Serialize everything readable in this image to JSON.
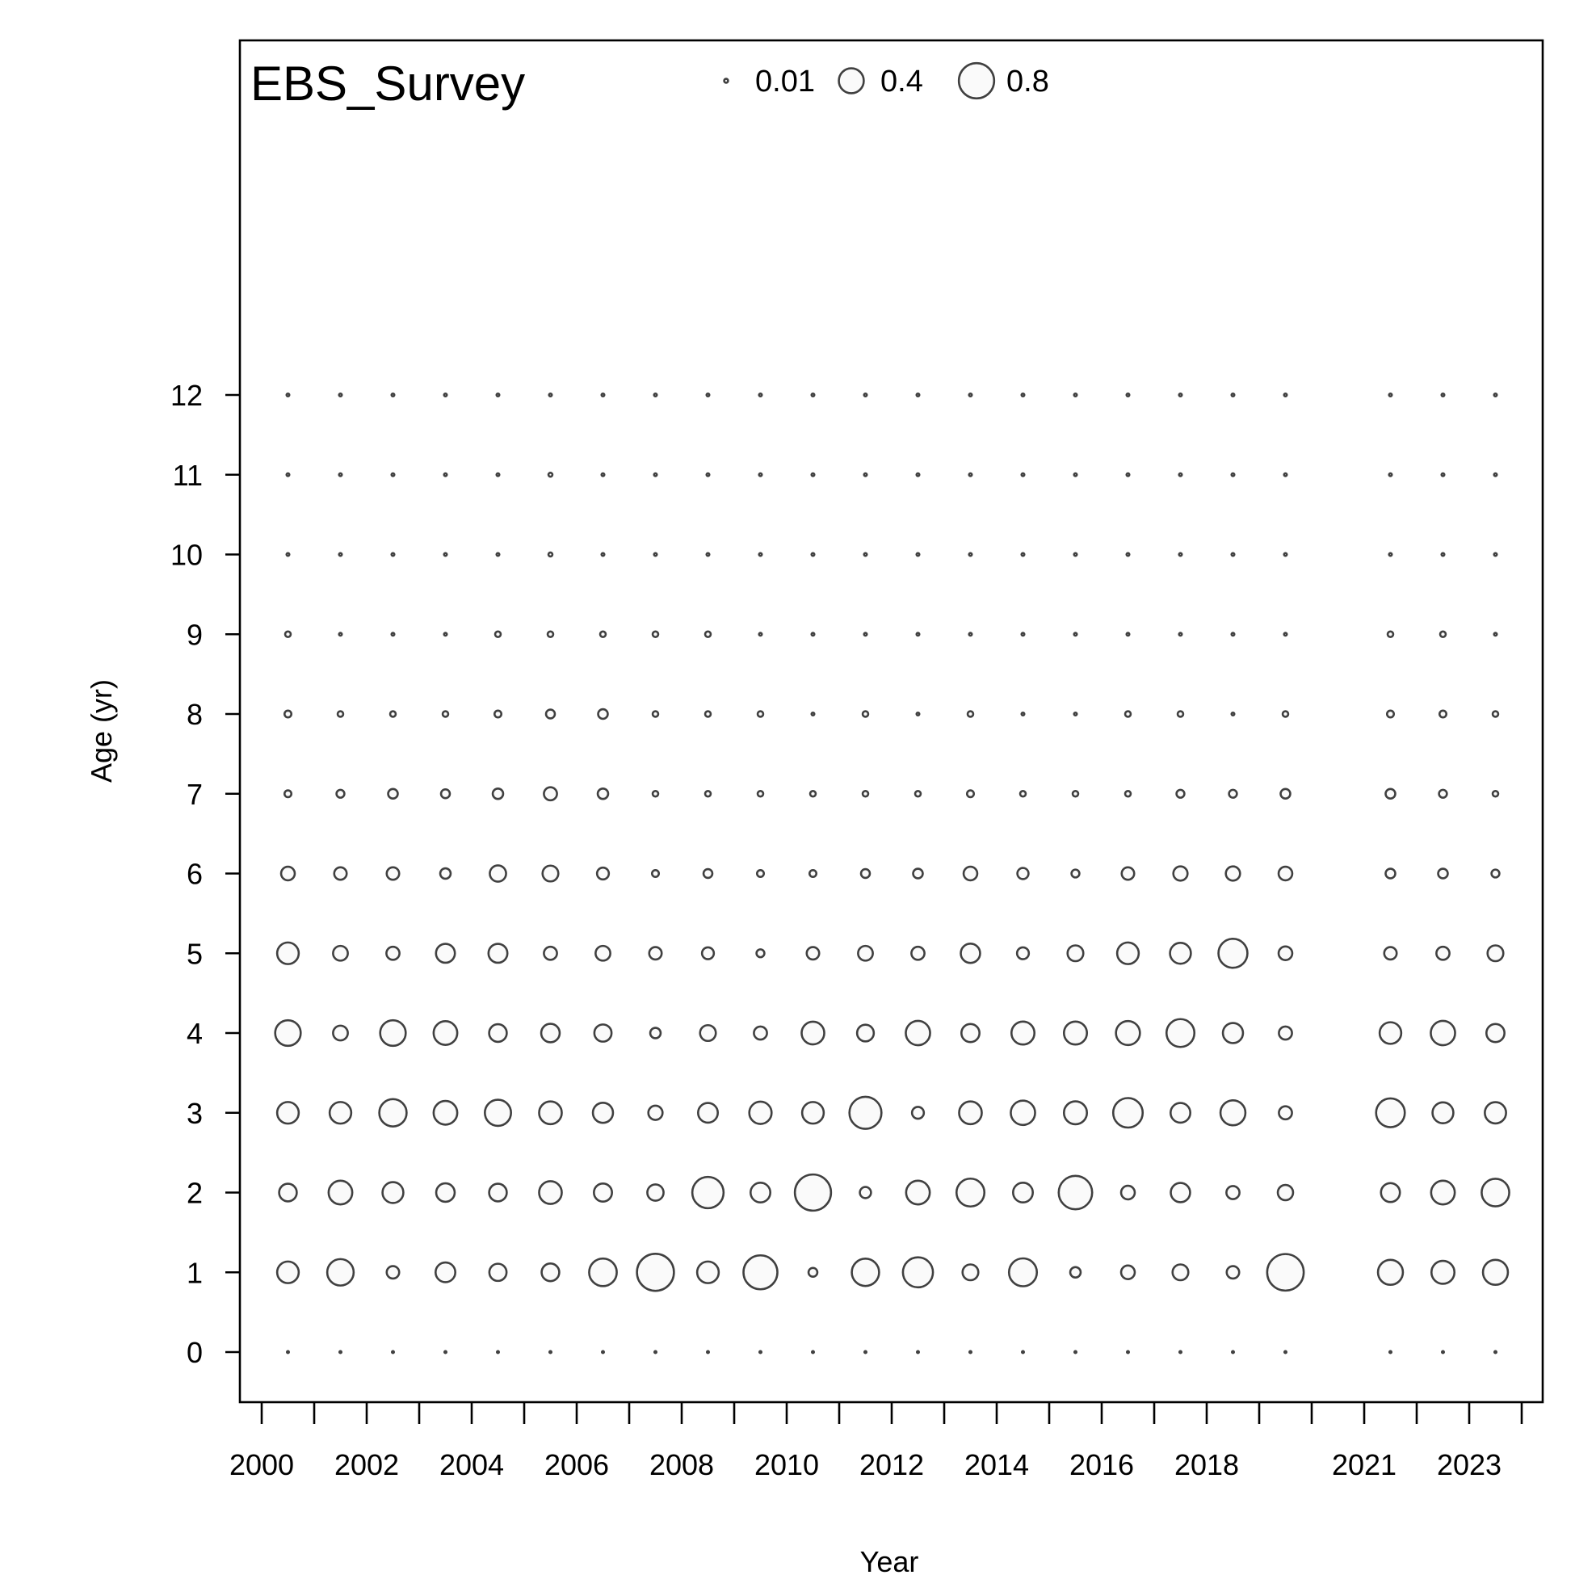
{
  "chart_data": {
    "type": "scatter",
    "subtype": "bubble",
    "title": "EBS_Survey",
    "xlabel": "Year",
    "ylabel": "Age (yr)",
    "x_tick_labels": [
      "2000",
      "2002",
      "2004",
      "2006",
      "2008",
      "2010",
      "2012",
      "2014",
      "2016",
      "2018",
      "2021",
      "2023"
    ],
    "y_tick_labels": [
      "0",
      "1",
      "2",
      "3",
      "4",
      "5",
      "6",
      "7",
      "8",
      "9",
      "10",
      "11",
      "12"
    ],
    "ylim": [
      -0.6,
      16.5
    ],
    "grid": false,
    "legend": {
      "placement": "top",
      "entries": [
        {
          "label": "0.01",
          "value": 0.01
        },
        {
          "label": "0.4",
          "value": 0.4
        },
        {
          "label": "0.8",
          "value": 0.8
        }
      ]
    },
    "stroke_color": "#404040",
    "fill_color": "#fafafa",
    "ages": [
      0,
      1,
      2,
      3,
      4,
      5,
      6,
      7,
      8,
      9,
      10,
      11,
      12
    ],
    "years": [
      {
        "year": 2000.5,
        "values": [
          0.001,
          0.3,
          0.2,
          0.3,
          0.42,
          0.3,
          0.12,
          0.03,
          0.03,
          0.02,
          0.005,
          0.005,
          0.005
        ]
      },
      {
        "year": 2001.5,
        "values": [
          0.001,
          0.45,
          0.36,
          0.3,
          0.14,
          0.14,
          0.1,
          0.04,
          0.02,
          0.005,
          0.005,
          0.005,
          0.005
        ]
      },
      {
        "year": 2002.5,
        "values": [
          0.001,
          0.1,
          0.28,
          0.48,
          0.42,
          0.11,
          0.1,
          0.06,
          0.02,
          0.005,
          0.005,
          0.005,
          0.005
        ]
      },
      {
        "year": 2003.5,
        "values": [
          0.001,
          0.25,
          0.22,
          0.36,
          0.36,
          0.23,
          0.07,
          0.05,
          0.02,
          0.005,
          0.005,
          0.005,
          0.005
        ]
      },
      {
        "year": 2004.5,
        "values": [
          0.001,
          0.19,
          0.2,
          0.44,
          0.2,
          0.23,
          0.17,
          0.07,
          0.03,
          0.02,
          0.005,
          0.005,
          0.005
        ]
      },
      {
        "year": 2005.5,
        "values": [
          0.001,
          0.2,
          0.33,
          0.33,
          0.22,
          0.11,
          0.16,
          0.11,
          0.05,
          0.02,
          0.01,
          0.01,
          0.005
        ]
      },
      {
        "year": 2006.5,
        "values": [
          0.001,
          0.49,
          0.21,
          0.26,
          0.19,
          0.14,
          0.09,
          0.07,
          0.06,
          0.02,
          0.005,
          0.005,
          0.005
        ]
      },
      {
        "year": 2007.5,
        "values": [
          0.001,
          0.88,
          0.17,
          0.13,
          0.07,
          0.1,
          0.03,
          0.02,
          0.02,
          0.02,
          0.005,
          0.005,
          0.005
        ]
      },
      {
        "year": 2008.5,
        "values": [
          0.001,
          0.3,
          0.63,
          0.25,
          0.16,
          0.09,
          0.05,
          0.02,
          0.02,
          0.02,
          0.005,
          0.005,
          0.005
        ]
      },
      {
        "year": 2009.5,
        "values": [
          0.001,
          0.74,
          0.25,
          0.32,
          0.11,
          0.04,
          0.03,
          0.02,
          0.02,
          0.005,
          0.005,
          0.005,
          0.005
        ]
      },
      {
        "year": 2010.5,
        "values": [
          0.001,
          0.05,
          0.84,
          0.3,
          0.33,
          0.1,
          0.03,
          0.02,
          0.005,
          0.005,
          0.005,
          0.005,
          0.005
        ]
      },
      {
        "year": 2011.5,
        "values": [
          0.001,
          0.48,
          0.08,
          0.66,
          0.18,
          0.14,
          0.05,
          0.02,
          0.02,
          0.005,
          0.005,
          0.005,
          0.005
        ]
      },
      {
        "year": 2012.5,
        "values": [
          0.001,
          0.58,
          0.36,
          0.09,
          0.38,
          0.11,
          0.06,
          0.02,
          0.005,
          0.005,
          0.005,
          0.005,
          0.005
        ]
      },
      {
        "year": 2013.5,
        "values": [
          0.001,
          0.16,
          0.5,
          0.33,
          0.21,
          0.24,
          0.12,
          0.03,
          0.02,
          0.005,
          0.005,
          0.005,
          0.005
        ]
      },
      {
        "year": 2014.5,
        "values": [
          0.001,
          0.5,
          0.25,
          0.38,
          0.34,
          0.09,
          0.08,
          0.02,
          0.005,
          0.005,
          0.005,
          0.005,
          0.005
        ]
      },
      {
        "year": 2015.5,
        "values": [
          0.001,
          0.07,
          0.72,
          0.34,
          0.34,
          0.16,
          0.04,
          0.02,
          0.005,
          0.005,
          0.005,
          0.005,
          0.005
        ]
      },
      {
        "year": 2016.5,
        "values": [
          0.001,
          0.12,
          0.12,
          0.56,
          0.37,
          0.3,
          0.1,
          0.02,
          0.02,
          0.005,
          0.005,
          0.005,
          0.005
        ]
      },
      {
        "year": 2017.5,
        "values": [
          0.001,
          0.16,
          0.24,
          0.25,
          0.5,
          0.28,
          0.13,
          0.04,
          0.02,
          0.005,
          0.005,
          0.005,
          0.005
        ]
      },
      {
        "year": 2018.5,
        "values": [
          0.001,
          0.1,
          0.11,
          0.4,
          0.26,
          0.54,
          0.13,
          0.04,
          0.005,
          0.005,
          0.005,
          0.005,
          0.005
        ]
      },
      {
        "year": 2019.5,
        "values": [
          0.001,
          0.86,
          0.15,
          0.11,
          0.11,
          0.12,
          0.12,
          0.06,
          0.02,
          0.005,
          0.005,
          0.005,
          0.005
        ]
      },
      {
        "year": 2021.5,
        "values": [
          0.001,
          0.4,
          0.23,
          0.53,
          0.3,
          0.1,
          0.06,
          0.06,
          0.03,
          0.02,
          0.005,
          0.005,
          0.005
        ]
      },
      {
        "year": 2022.5,
        "values": [
          0.001,
          0.34,
          0.36,
          0.28,
          0.38,
          0.11,
          0.06,
          0.04,
          0.03,
          0.02,
          0.005,
          0.005,
          0.005
        ]
      },
      {
        "year": 2023.5,
        "values": [
          0.001,
          0.4,
          0.49,
          0.29,
          0.21,
          0.16,
          0.04,
          0.02,
          0.02,
          0.005,
          0.005,
          0.005,
          0.005
        ]
      }
    ]
  }
}
